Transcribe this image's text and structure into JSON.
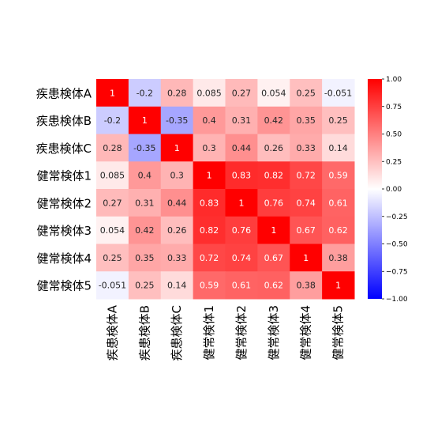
{
  "chart_data": {
    "type": "heatmap",
    "title": "",
    "xlabel": "",
    "ylabel": "",
    "rows": [
      "疾患検体A",
      "疾患検体B",
      "疾患検体C",
      "健常検体1",
      "健常検体2",
      "健常検体3",
      "健常検体4",
      "健常検体5"
    ],
    "cols": [
      "疾患検体A",
      "疾患検体B",
      "疾患検体C",
      "健常検体1",
      "健常検体2",
      "健常検体3",
      "健常検体4",
      "健常検体5"
    ],
    "values": [
      [
        1,
        -0.2,
        0.28,
        0.085,
        0.27,
        0.054,
        0.25,
        -0.051
      ],
      [
        -0.2,
        1,
        -0.35,
        0.4,
        0.31,
        0.42,
        0.35,
        0.25
      ],
      [
        0.28,
        -0.35,
        1,
        0.3,
        0.44,
        0.26,
        0.33,
        0.14
      ],
      [
        0.085,
        0.4,
        0.3,
        1,
        0.83,
        0.82,
        0.72,
        0.59
      ],
      [
        0.27,
        0.31,
        0.44,
        0.83,
        1,
        0.76,
        0.74,
        0.61
      ],
      [
        0.054,
        0.42,
        0.26,
        0.82,
        0.76,
        1,
        0.67,
        0.62
      ],
      [
        0.25,
        0.35,
        0.33,
        0.72,
        0.74,
        0.67,
        1,
        0.38
      ],
      [
        -0.051,
        0.25,
        0.14,
        0.59,
        0.61,
        0.62,
        0.38,
        1
      ]
    ],
    "value_labels": [
      [
        "1",
        "-0.2",
        "0.28",
        "0.085",
        "0.27",
        "0.054",
        "0.25",
        "-0.051"
      ],
      [
        "-0.2",
        "1",
        "-0.35",
        "0.4",
        "0.31",
        "0.42",
        "0.35",
        "0.25"
      ],
      [
        "0.28",
        "-0.35",
        "1",
        "0.3",
        "0.44",
        "0.26",
        "0.33",
        "0.14"
      ],
      [
        "0.085",
        "0.4",
        "0.3",
        "1",
        "0.83",
        "0.82",
        "0.72",
        "0.59"
      ],
      [
        "0.27",
        "0.31",
        "0.44",
        "0.83",
        "1",
        "0.76",
        "0.74",
        "0.61"
      ],
      [
        "0.054",
        "0.42",
        "0.26",
        "0.82",
        "0.76",
        "1",
        "0.67",
        "0.62"
      ],
      [
        "0.25",
        "0.35",
        "0.33",
        "0.72",
        "0.74",
        "0.67",
        "1",
        "0.38"
      ],
      [
        "-0.051",
        "0.25",
        "0.14",
        "0.59",
        "0.61",
        "0.62",
        "0.38",
        "1"
      ]
    ],
    "colorscale": {
      "name": "bwr",
      "min": -1.0,
      "max": 1.0,
      "low_color": "#0000ff",
      "mid_color": "#ffffff",
      "high_color": "#ff0000",
      "ticks": [
        -1.0,
        -0.75,
        -0.5,
        -0.25,
        0.0,
        0.25,
        0.5,
        0.75,
        1.0
      ],
      "tick_labels": [
        "−1.00",
        "−0.75",
        "−0.50",
        "−0.25",
        "0.00",
        "0.25",
        "0.50",
        "0.75",
        "1.00"
      ]
    },
    "grid": false,
    "annotations": true
  }
}
